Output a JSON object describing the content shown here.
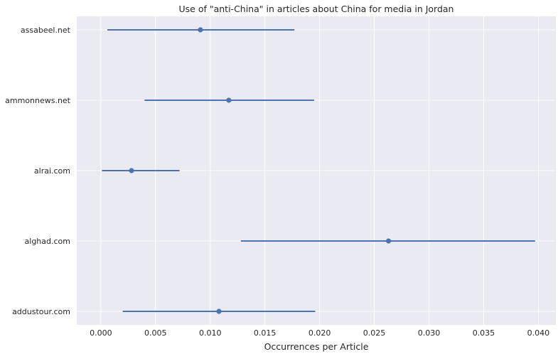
{
  "chart_data": {
    "type": "errorbar",
    "title": "Use of \"anti-China\" in articles about China for media in Jordan",
    "xlabel": "Occurrences per Article",
    "ylabel": "",
    "xlim": [
      -0.0022,
      0.0416
    ],
    "xticks": [
      "0.000",
      "0.005",
      "0.010",
      "0.015",
      "0.020",
      "0.025",
      "0.030",
      "0.035",
      "0.040"
    ],
    "xtick_values": [
      0.0,
      0.005,
      0.01,
      0.015,
      0.02,
      0.025,
      0.03,
      0.035,
      0.04
    ],
    "grid": true,
    "background": "#eaeaf2",
    "color": "#4c72b0",
    "categories": [
      "assabeel.net",
      "ammonnews.net",
      "alrai.com",
      "alghad.com",
      "addustour.com"
    ],
    "points": [
      {
        "label": "assabeel.net",
        "value": 0.0091,
        "lower": 0.0006,
        "upper": 0.0177
      },
      {
        "label": "ammonnews.net",
        "value": 0.0117,
        "lower": 0.004,
        "upper": 0.0195
      },
      {
        "label": "alrai.com",
        "value": 0.0028,
        "lower": 0.0001,
        "upper": 0.0072
      },
      {
        "label": "alghad.com",
        "value": 0.0263,
        "lower": 0.0128,
        "upper": 0.0397
      },
      {
        "label": "addustour.com",
        "value": 0.0108,
        "lower": 0.002,
        "upper": 0.0196
      }
    ]
  }
}
